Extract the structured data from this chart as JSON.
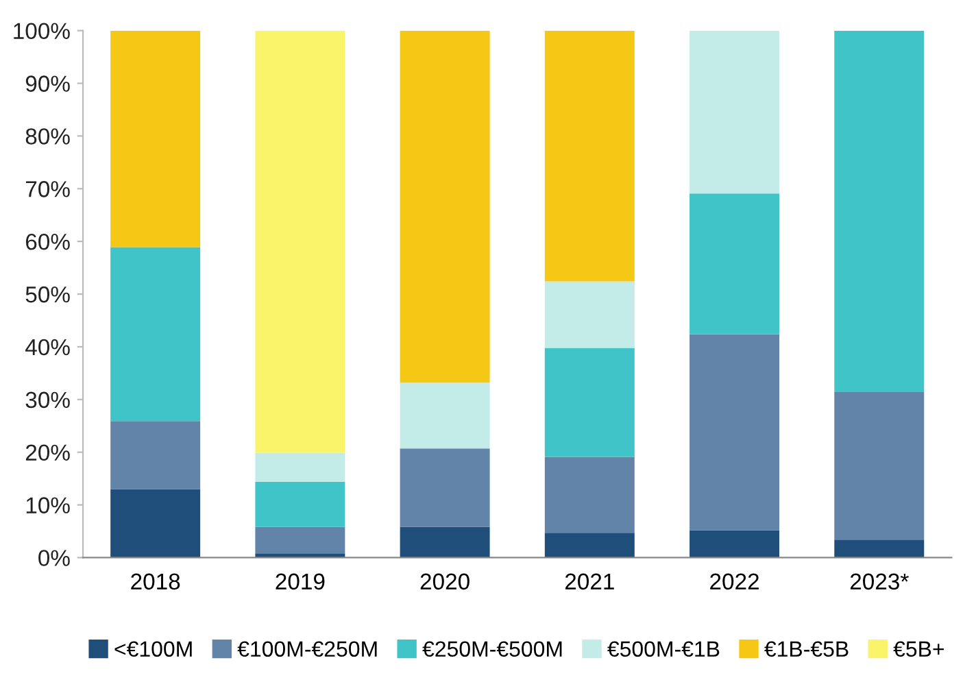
{
  "chart_data": {
    "type": "bar",
    "stacked": true,
    "categories": [
      "2018",
      "2019",
      "2020",
      "2021",
      "2022",
      "2023*"
    ],
    "series": [
      {
        "name": "<€100M",
        "color": "#1f4e7a",
        "values": [
          13.0,
          0.8,
          5.8,
          4.7,
          5.2,
          3.4
        ]
      },
      {
        "name": "€100M-€250M",
        "color": "#6184a8",
        "values": [
          12.9,
          5.0,
          14.9,
          14.4,
          37.2,
          28.0
        ]
      },
      {
        "name": "€250M-€500M",
        "color": "#40c4c8",
        "values": [
          33.0,
          8.6,
          0,
          20.7,
          26.7,
          68.6
        ]
      },
      {
        "name": "€500M-€1B",
        "color": "#c3ece9",
        "values": [
          0,
          5.5,
          12.5,
          12.6,
          30.9,
          0
        ]
      },
      {
        "name": "€1B-€5B",
        "color": "#f5c816",
        "values": [
          41.1,
          0,
          66.8,
          47.6,
          0,
          0
        ]
      },
      {
        "name": "€5B+",
        "color": "#faf46a",
        "values": [
          0,
          80.1,
          0,
          0,
          0,
          0
        ]
      }
    ],
    "ylim": [
      0,
      100
    ],
    "yticks": [
      {
        "value": 0,
        "label": "0%"
      },
      {
        "value": 10,
        "label": "10%"
      },
      {
        "value": 20,
        "label": "20%"
      },
      {
        "value": 30,
        "label": "30%"
      },
      {
        "value": 40,
        "label": "40%"
      },
      {
        "value": 50,
        "label": "50%"
      },
      {
        "value": 60,
        "label": "60%"
      },
      {
        "value": 70,
        "label": "70%"
      },
      {
        "value": 80,
        "label": "80%"
      },
      {
        "value": 90,
        "label": "90%"
      },
      {
        "value": 100,
        "label": "100%"
      }
    ],
    "grid": false,
    "legend": "bottom"
  }
}
